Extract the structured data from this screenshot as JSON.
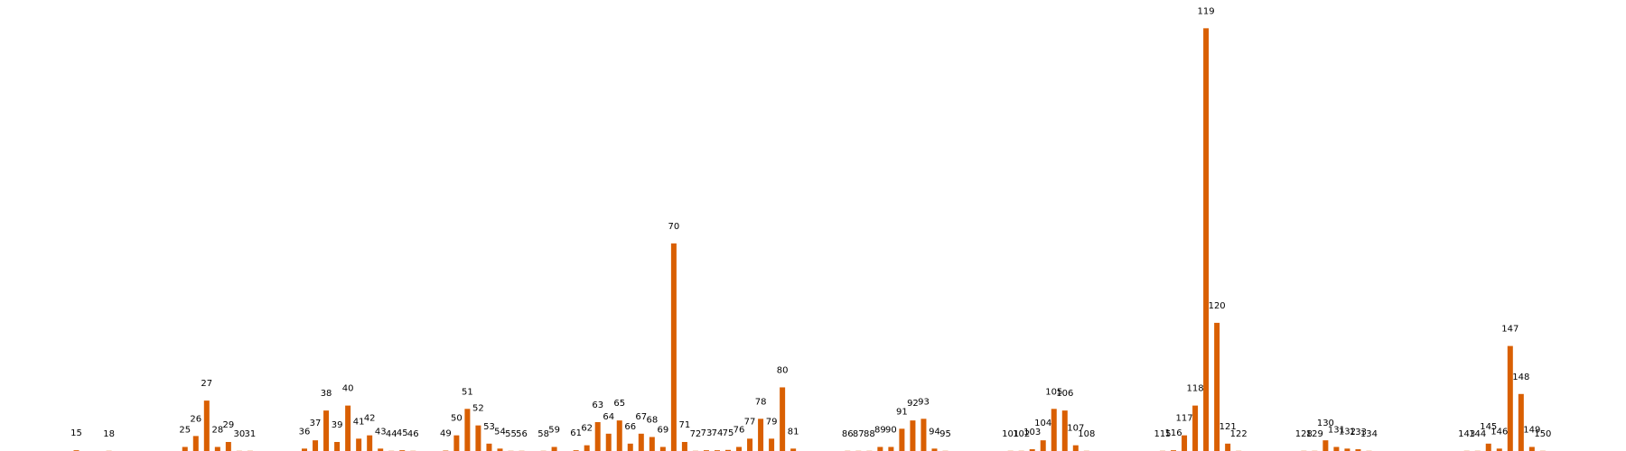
{
  "chart_data": {
    "type": "bar",
    "title": "",
    "xlabel": "",
    "ylabel": "",
    "ylim": [
      0,
      130
    ],
    "grid": false,
    "bar_color": "#d95f02",
    "x": [
      15,
      18,
      25,
      26,
      27,
      28,
      29,
      30,
      31,
      36,
      37,
      38,
      39,
      40,
      41,
      42,
      43,
      44,
      45,
      46,
      49,
      50,
      51,
      52,
      53,
      54,
      55,
      56,
      58,
      59,
      61,
      62,
      63,
      64,
      65,
      66,
      67,
      68,
      69,
      70,
      71,
      72,
      73,
      74,
      75,
      76,
      77,
      78,
      79,
      80,
      81,
      86,
      87,
      88,
      89,
      90,
      91,
      92,
      93,
      94,
      95,
      101,
      102,
      103,
      104,
      105,
      106,
      107,
      108,
      115,
      116,
      117,
      118,
      119,
      120,
      121,
      122,
      128,
      129,
      130,
      131,
      132,
      133,
      134,
      143,
      144,
      145,
      146,
      147,
      148,
      149,
      150
    ],
    "values": [
      0.5,
      0.3,
      1.5,
      4.8,
      15.5,
      1.5,
      3,
      0.1,
      0.1,
      1,
      3.5,
      12.5,
      3,
      14,
      4,
      5,
      1,
      0.3,
      0.5,
      0.3,
      0.4,
      5,
      13,
      8,
      2.5,
      1,
      0.2,
      0.1,
      0.3,
      1.5,
      0.5,
      2,
      9,
      5.5,
      9.5,
      2.5,
      5.5,
      4.5,
      1.5,
      63,
      3,
      0.1,
      0.5,
      0.5,
      0.6,
      1.5,
      4,
      10,
      4,
      19.5,
      1,
      0.1,
      0.2,
      0.2,
      1.5,
      1.5,
      7,
      9.5,
      10,
      1,
      0.1,
      0.1,
      0.2,
      0.8,
      3.5,
      13,
      12.5,
      2,
      0.1,
      0.1,
      0.5,
      5,
      14,
      128,
      39,
      2.5,
      0.1,
      0.2,
      0.1,
      3.5,
      1.5,
      1,
      0.8,
      0.3,
      0.1,
      0.3,
      2.5,
      1,
      32,
      17.5,
      1.5,
      0.1
    ],
    "labels": [
      "15",
      "18",
      "25",
      "26",
      "27",
      "28",
      "29",
      "30",
      "31",
      "36",
      "37",
      "38",
      "39",
      "40",
      "41",
      "42",
      "43",
      "44",
      "45",
      "46",
      "49",
      "50",
      "51",
      "52",
      "53",
      "54",
      "55",
      "56",
      "58",
      "59",
      "61",
      "62",
      "63",
      "64",
      "65",
      "66",
      "67",
      "68",
      "69",
      "70",
      "71",
      "72",
      "73",
      "74",
      "75",
      "76",
      "77",
      "78",
      "79",
      "80",
      "81",
      "86",
      "87",
      "88",
      "89",
      "90",
      "91",
      "92",
      "93",
      "94",
      "95",
      "101",
      "102",
      "103",
      "104",
      "105",
      "106",
      "107",
      "108",
      "115",
      "116",
      "117",
      "118",
      "119",
      "120",
      "121",
      "122",
      "128",
      "129",
      "130",
      "131",
      "132",
      "133",
      "134",
      "143",
      "144",
      "145",
      "146",
      "147",
      "148",
      "149",
      "150"
    ]
  }
}
